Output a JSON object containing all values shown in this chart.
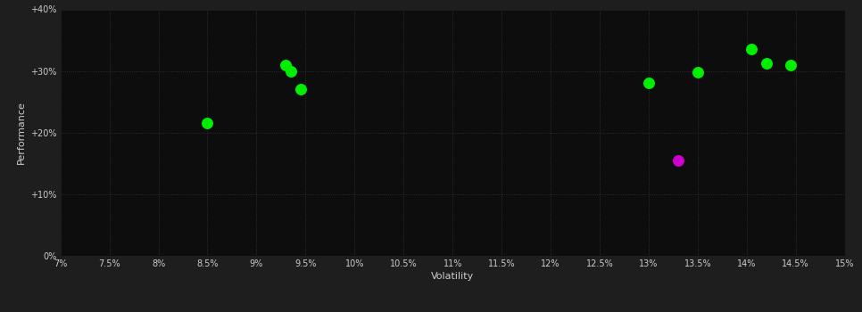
{
  "points_green": [
    [
      8.5,
      21.5
    ],
    [
      9.3,
      31.0
    ],
    [
      9.35,
      30.0
    ],
    [
      9.45,
      27.0
    ],
    [
      13.0,
      28.0
    ],
    [
      13.5,
      29.8
    ],
    [
      14.05,
      33.5
    ],
    [
      14.2,
      31.2
    ],
    [
      14.45,
      31.0
    ]
  ],
  "points_magenta": [
    [
      13.3,
      15.5
    ]
  ],
  "x_min": 7.0,
  "x_max": 15.0,
  "x_ticks": [
    7.0,
    7.5,
    8.0,
    8.5,
    9.0,
    9.5,
    10.0,
    10.5,
    11.0,
    11.5,
    12.0,
    12.5,
    13.0,
    13.5,
    14.0,
    14.5,
    15.0
  ],
  "y_min": 0.0,
  "y_max": 40.0,
  "y_ticks": [
    0.0,
    10.0,
    20.0,
    30.0,
    40.0
  ],
  "y_tick_labels": [
    "0%",
    "+10%",
    "+20%",
    "+30%",
    "+40%"
  ],
  "xlabel": "Volatility",
  "ylabel": "Performance",
  "plot_bg_color": "#0d0d0d",
  "fig_bg_color": "#1e1e1e",
  "grid_color": "#3a3a3a",
  "tick_color": "#cccccc",
  "label_color": "#cccccc",
  "green_color": "#00ee00",
  "magenta_color": "#cc00cc",
  "marker_size": 5
}
